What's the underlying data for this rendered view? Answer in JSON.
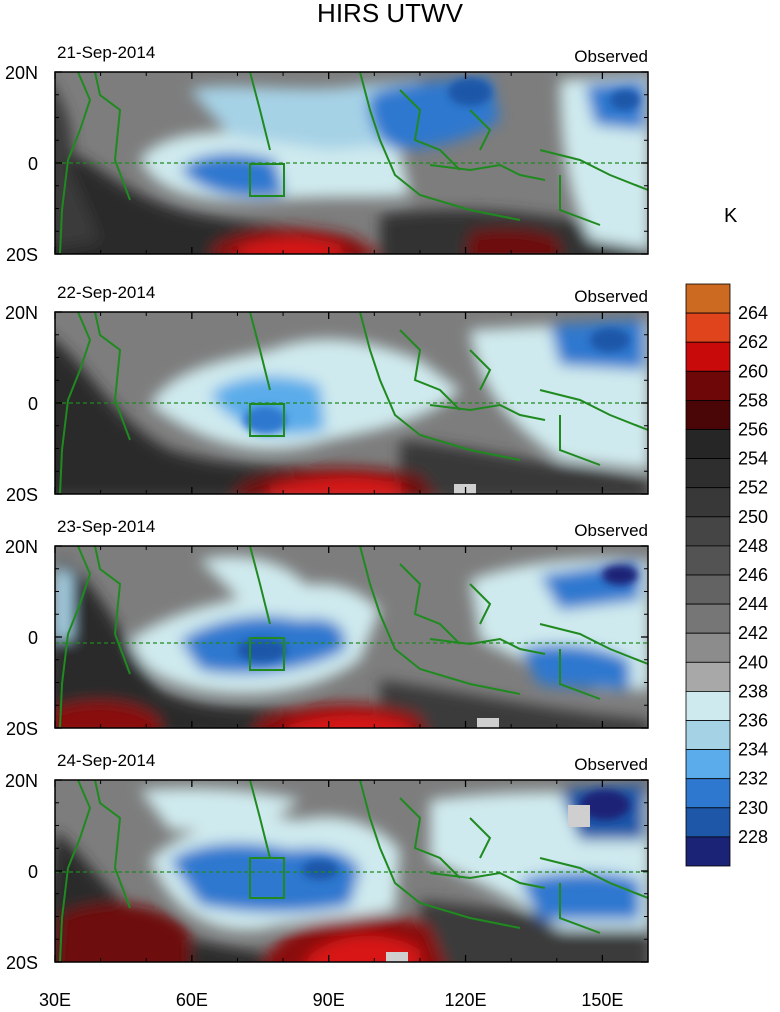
{
  "chart_data": {
    "type": "heatmap",
    "title": "HIRS UTWV",
    "unit_label": "K",
    "x_ticks": [
      {
        "value": 30,
        "label": "30E"
      },
      {
        "value": 60,
        "label": "60E"
      },
      {
        "value": 90,
        "label": "90E"
      },
      {
        "value": 120,
        "label": "120E"
      },
      {
        "value": 150,
        "label": "150E"
      }
    ],
    "xlim": [
      30,
      160
    ],
    "y_ticks": [
      {
        "value": 20,
        "label": "20N"
      },
      {
        "value": 0,
        "label": "0"
      },
      {
        "value": -20,
        "label": "20S"
      }
    ],
    "ylim": [
      -20,
      20
    ],
    "colorbar": {
      "labels": [
        "264",
        "262",
        "260",
        "258",
        "256",
        "254",
        "252",
        "250",
        "248",
        "246",
        "244",
        "242",
        "240",
        "238",
        "236",
        "234",
        "232",
        "230",
        "228"
      ],
      "colors": [
        "#cc6a22",
        "#e0441c",
        "#c80a0a",
        "#6e0808",
        "#4a0606",
        "#262626",
        "#2e2e2e",
        "#383838",
        "#454545",
        "#535353",
        "#636363",
        "#767676",
        "#8c8c8c",
        "#a8a8a8",
        "#cfeaee",
        "#a6d2e6",
        "#5aacea",
        "#2f78cf",
        "#1e56a8",
        "#1a2376"
      ]
    },
    "panels": [
      {
        "date": "21-Sep-2014",
        "label": "Observed"
      },
      {
        "date": "22-Sep-2014",
        "label": "Observed"
      },
      {
        "date": "23-Sep-2014",
        "label": "Observed"
      },
      {
        "date": "24-Sep-2014",
        "label": "Observed"
      }
    ]
  }
}
